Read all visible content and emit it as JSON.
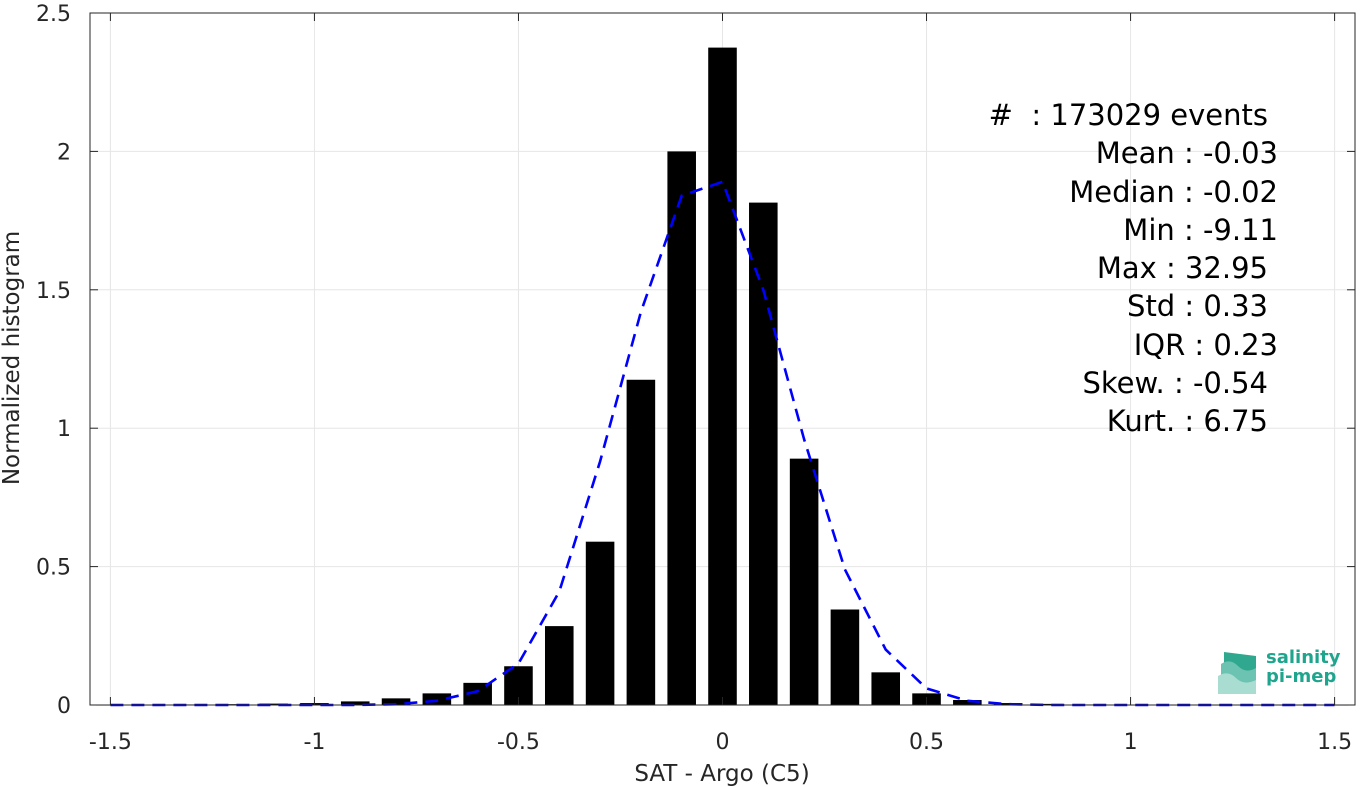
{
  "chart_data": {
    "type": "bar",
    "xlabel": "SAT - Argo (C5)",
    "ylabel": "Normalized histogram",
    "xlim": [
      -1.55,
      1.55
    ],
    "ylim": [
      0,
      2.5
    ],
    "grid": true,
    "xticks": [
      "-1.5",
      "-1",
      "-0.5",
      "0",
      "0.5",
      "1",
      "1.5"
    ],
    "xtick_values": [
      -1.5,
      -1,
      -0.5,
      0,
      0.5,
      1,
      1.5
    ],
    "yticks": [
      "0",
      "0.5",
      "1",
      "1.5",
      "2",
      "2.5"
    ],
    "ytick_values": [
      0,
      0.5,
      1,
      1.5,
      2,
      2.5
    ],
    "bar_width": 0.07,
    "bars": {
      "x": [
        -1.5,
        -1.4,
        -1.3,
        -1.2,
        -1.1,
        -1.0,
        -0.9,
        -0.8,
        -0.7,
        -0.6,
        -0.5,
        -0.4,
        -0.3,
        -0.2,
        -0.1,
        0.0,
        0.1,
        0.2,
        0.3,
        0.4,
        0.5,
        0.6,
        0.7,
        0.8,
        0.9,
        1.0,
        1.1,
        1.2,
        1.3,
        1.4,
        1.5
      ],
      "values": [
        0.001,
        0.001,
        0.002,
        0.003,
        0.005,
        0.007,
        0.013,
        0.024,
        0.042,
        0.08,
        0.14,
        0.285,
        0.59,
        1.175,
        2.0,
        2.375,
        1.815,
        0.89,
        0.345,
        0.118,
        0.042,
        0.018,
        0.007,
        0.004,
        0.002,
        0.001,
        0.001,
        0.001,
        0.001,
        0.001,
        0.001
      ]
    },
    "fit_curve": {
      "style": "dashed",
      "color": "#0000ff",
      "x": [
        -1.5,
        -1.4,
        -1.3,
        -1.2,
        -1.1,
        -1.0,
        -0.9,
        -0.8,
        -0.7,
        -0.6,
        -0.5,
        -0.4,
        -0.3,
        -0.2,
        -0.1,
        0.0,
        0.1,
        0.2,
        0.3,
        0.4,
        0.5,
        0.6,
        0.7,
        0.8,
        0.9,
        1.0,
        1.1,
        1.2,
        1.3,
        1.4,
        1.5
      ],
      "y": [
        0.0,
        0.0,
        0.0,
        0.0,
        0.0,
        0.0,
        0.0,
        0.003,
        0.015,
        0.05,
        0.15,
        0.41,
        0.88,
        1.42,
        1.84,
        1.89,
        1.5,
        0.96,
        0.49,
        0.2,
        0.06,
        0.015,
        0.003,
        0.0,
        0.0,
        0.0,
        0.0,
        0.0,
        0.0,
        0.0,
        0.0
      ]
    },
    "bar_color": "#000000"
  },
  "stats": {
    "events": "#  : 173029 events",
    "mean": "Mean : -0.03",
    "median": "Median : -0.02",
    "min": "Min : -9.11",
    "max": "Max : 32.95",
    "std": "Std : 0.33",
    "iqr": "IQR : 0.23",
    "skew": "Skew. : -0.54",
    "kurt": "Kurt. : 6.75"
  },
  "logo": {
    "line1": "salinity",
    "line2": "pi-mep",
    "color": "#1fa58d"
  }
}
